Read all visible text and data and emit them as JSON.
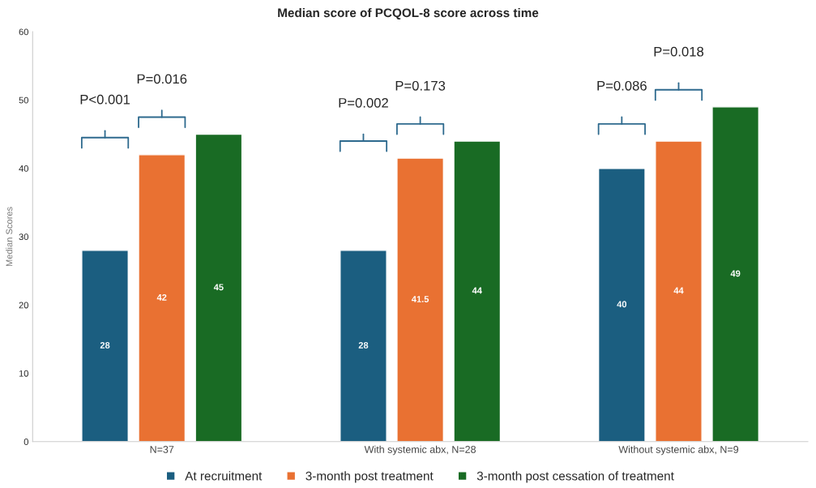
{
  "chart_data": {
    "type": "bar",
    "title": "Median score of PCQOL-8 score across time",
    "ylabel": "Median Scores",
    "categories": [
      "N=37",
      "With systemic abx, N=28",
      "Without systemic abx, N=9"
    ],
    "series": [
      {
        "name": "At recruitment",
        "color": "#1b5e80",
        "values": [
          28,
          28,
          40
        ]
      },
      {
        "name": "3-month post treatment",
        "color": "#e97132",
        "values": [
          42,
          41.5,
          44
        ]
      },
      {
        "name": "3-month post cessation of treatment",
        "color": "#196b24",
        "values": [
          45,
          44,
          49
        ]
      }
    ],
    "ylim": [
      0,
      60
    ],
    "yticks": [
      0,
      10,
      20,
      30,
      40,
      50,
      60
    ],
    "grid": false,
    "legend": "bottom",
    "data_labels": true,
    "annotations": [
      "P<0.001",
      "P=0.016",
      "P=0.002",
      "P=0.173",
      "P=0.086",
      "P=0.018"
    ]
  }
}
